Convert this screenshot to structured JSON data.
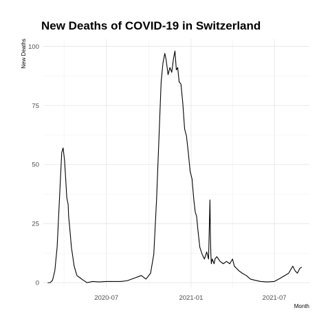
{
  "chart_data": {
    "type": "line",
    "title": "New Deaths of COVID-19 in Switzerland",
    "xlabel": "Month",
    "ylabel": "New Deaths",
    "x_tick_labels": [
      "2020-07",
      "2021-01",
      "2021-07"
    ],
    "x_ticks": [
      "2020-07-01",
      "2021-01-01",
      "2021-07-01"
    ],
    "y_ticks": [
      0,
      25,
      50,
      75,
      100
    ],
    "xlim": [
      "2020-02-15",
      "2021-09-15"
    ],
    "ylim": [
      -2,
      103
    ],
    "grid": true,
    "legend": "none",
    "series_color": "#000000",
    "x": [
      "2020-02-25",
      "2020-03-01",
      "2020-03-06",
      "2020-03-11",
      "2020-03-16",
      "2020-03-21",
      "2020-03-26",
      "2020-03-29",
      "2020-04-01",
      "2020-04-03",
      "2020-04-06",
      "2020-04-09",
      "2020-04-10",
      "2020-04-12",
      "2020-04-16",
      "2020-04-22",
      "2020-04-28",
      "2020-05-05",
      "2020-05-12",
      "2020-05-20",
      "2020-06-01",
      "2020-06-15",
      "2020-07-01",
      "2020-07-15",
      "2020-08-01",
      "2020-08-15",
      "2020-09-01",
      "2020-09-15",
      "2020-09-25",
      "2020-10-05",
      "2020-10-12",
      "2020-10-18",
      "2020-10-24",
      "2020-10-28",
      "2020-11-01",
      "2020-11-05",
      "2020-11-08",
      "2020-11-12",
      "2020-11-16",
      "2020-11-20",
      "2020-11-24",
      "2020-11-27",
      "2020-11-30",
      "2020-12-03",
      "2020-12-06",
      "2020-12-10",
      "2020-12-14",
      "2020-12-18",
      "2020-12-22",
      "2020-12-26",
      "2020-12-30",
      "2021-01-03",
      "2021-01-07",
      "2021-01-10",
      "2021-01-13",
      "2021-01-16",
      "2021-01-20",
      "2021-01-25",
      "2021-01-30",
      "2021-02-04",
      "2021-02-08",
      "2021-02-11",
      "2021-02-12",
      "2021-02-13",
      "2021-02-14",
      "2021-02-16",
      "2021-02-18",
      "2021-02-20",
      "2021-02-22",
      "2021-02-26",
      "2021-03-05",
      "2021-03-12",
      "2021-03-19",
      "2021-03-26",
      "2021-04-01",
      "2021-04-05",
      "2021-04-10",
      "2021-04-15",
      "2021-04-22",
      "2021-05-01",
      "2021-05-10",
      "2021-05-20",
      "2021-06-01",
      "2021-06-15",
      "2021-07-01",
      "2021-07-15",
      "2021-08-01",
      "2021-08-10",
      "2021-08-15",
      "2021-08-20",
      "2021-08-25",
      "2021-08-29"
    ],
    "y": [
      0,
      0,
      1,
      5,
      15,
      35,
      55,
      57,
      52,
      46,
      36,
      33,
      28,
      24,
      15,
      7,
      3,
      2,
      1,
      0,
      0.5,
      0.3,
      0.5,
      0.5,
      0.5,
      0.8,
      2,
      3,
      1.5,
      4,
      12,
      35,
      65,
      85,
      93,
      97,
      94,
      88,
      91,
      89,
      95,
      98,
      90,
      91,
      85,
      84,
      76,
      65,
      62,
      55,
      47,
      44,
      35,
      30,
      28,
      22,
      15,
      12,
      10,
      13,
      10,
      35,
      20,
      12,
      8,
      10,
      9,
      8,
      10,
      11,
      9,
      8,
      9,
      8,
      10,
      7,
      6,
      5,
      4,
      3,
      1.5,
      1,
      0.5,
      0.3,
      0.5,
      2,
      4,
      7,
      5,
      4,
      6,
      6.5
    ]
  }
}
